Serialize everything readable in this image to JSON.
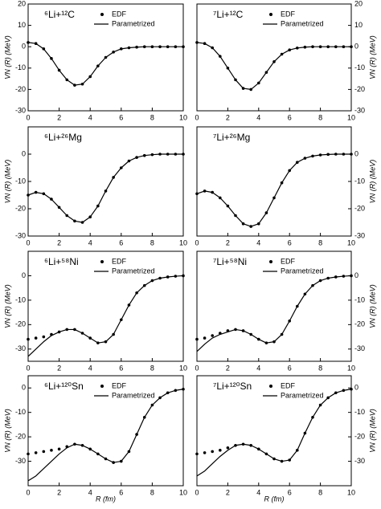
{
  "chart_data": [
    {
      "type": "line",
      "title": "⁶Li+¹²C",
      "ylabel": "VN (R) (MeV)",
      "yaxis": "left",
      "x": [
        0,
        0.5,
        1,
        1.5,
        2,
        2.5,
        3,
        3.5,
        4,
        4.5,
        5,
        5.5,
        6,
        6.5,
        7,
        7.5,
        8,
        8.5,
        9,
        9.5,
        10
      ],
      "xlim": [
        0,
        10
      ],
      "xticks": [
        0,
        2,
        4,
        6,
        8,
        10
      ],
      "ylim": [
        -30,
        20
      ],
      "yticks": [
        -30,
        -20,
        -10,
        0,
        10,
        20
      ],
      "series": [
        {
          "name": "EDF",
          "mode": "markers",
          "color": "#000000",
          "values": [
            2,
            1.5,
            -1,
            -5.5,
            -11,
            -15.5,
            -18,
            -17.5,
            -14,
            -9,
            -5,
            -2.5,
            -1,
            -0.5,
            -0.2,
            0,
            0,
            0,
            0,
            0,
            0
          ]
        },
        {
          "name": "Parametrized",
          "mode": "line",
          "color": "#000000",
          "values": [
            2,
            1.5,
            -1,
            -5.5,
            -11,
            -15.5,
            -18,
            -17.5,
            -14,
            -9,
            -5,
            -2.5,
            -1,
            -0.5,
            -0.2,
            0,
            0,
            0,
            0,
            0,
            0
          ]
        }
      ]
    },
    {
      "type": "line",
      "title": "⁷Li+¹²C",
      "ylabel": "VN (R) (MeV)",
      "yaxis": "right",
      "x": [
        0,
        0.5,
        1,
        1.5,
        2,
        2.5,
        3,
        3.5,
        4,
        4.5,
        5,
        5.5,
        6,
        6.5,
        7,
        7.5,
        8,
        8.5,
        9,
        9.5,
        10
      ],
      "xlim": [
        0,
        10
      ],
      "xticks": [
        0,
        2,
        4,
        6,
        8,
        10
      ],
      "ylim": [
        -30,
        20
      ],
      "yticks": [
        -30,
        -20,
        -10,
        0,
        10,
        20
      ],
      "series": [
        {
          "name": "EDF",
          "mode": "markers",
          "color": "#000000",
          "values": [
            2,
            1.5,
            -0.5,
            -4.5,
            -10,
            -15.5,
            -19.5,
            -20,
            -17,
            -12,
            -7,
            -3.5,
            -1.5,
            -0.6,
            -0.2,
            0,
            0,
            0,
            0,
            0,
            0
          ]
        },
        {
          "name": "Parametrized",
          "mode": "line",
          "color": "#000000",
          "values": [
            2,
            1.5,
            -0.5,
            -4.5,
            -10,
            -15.5,
            -19.5,
            -20,
            -17,
            -12,
            -7,
            -3.5,
            -1.5,
            -0.6,
            -0.2,
            0,
            0,
            0,
            0,
            0,
            0
          ]
        }
      ]
    },
    {
      "type": "line",
      "title": "⁶Li+²⁶Mg",
      "ylabel": "VN (R) (MeV)",
      "yaxis": "left",
      "x": [
        0,
        0.5,
        1,
        1.5,
        2,
        2.5,
        3,
        3.5,
        4,
        4.5,
        5,
        5.5,
        6,
        6.5,
        7,
        7.5,
        8,
        8.5,
        9,
        9.5,
        10
      ],
      "xlim": [
        0,
        10
      ],
      "xticks": [
        0,
        2,
        4,
        6,
        8,
        10
      ],
      "ylim": [
        -30,
        10
      ],
      "yticks": [
        -30,
        -20,
        -10,
        0
      ],
      "series": [
        {
          "mode": "markers",
          "color": "#000000",
          "values": [
            -15,
            -14,
            -14.5,
            -16.5,
            -19.5,
            -22.5,
            -24.5,
            -25,
            -23,
            -19,
            -13.5,
            -8.5,
            -5,
            -2.5,
            -1.2,
            -0.5,
            -0.2,
            0,
            0,
            0,
            0
          ]
        },
        {
          "mode": "line",
          "color": "#000000",
          "values": [
            -15,
            -14,
            -14.5,
            -16.5,
            -19.5,
            -22.5,
            -24.5,
            -25,
            -23,
            -19,
            -13.5,
            -8.5,
            -5,
            -2.5,
            -1.2,
            -0.5,
            -0.2,
            0,
            0,
            0,
            0
          ]
        }
      ]
    },
    {
      "type": "line",
      "title": "⁷Li+²⁶Mg",
      "ylabel": "VN (R) (MeV)",
      "yaxis": "right",
      "x": [
        0,
        0.5,
        1,
        1.5,
        2,
        2.5,
        3,
        3.5,
        4,
        4.5,
        5,
        5.5,
        6,
        6.5,
        7,
        7.5,
        8,
        8.5,
        9,
        9.5,
        10
      ],
      "xlim": [
        0,
        10
      ],
      "xticks": [
        0,
        2,
        4,
        6,
        8,
        10
      ],
      "ylim": [
        -30,
        10
      ],
      "yticks": [
        -30,
        -20,
        -10,
        0
      ],
      "series": [
        {
          "mode": "markers",
          "color": "#000000",
          "values": [
            -14.5,
            -13.5,
            -14,
            -16,
            -19,
            -22.5,
            -25.5,
            -26.5,
            -25.5,
            -21.5,
            -16,
            -10.5,
            -6,
            -3,
            -1.5,
            -0.7,
            -0.3,
            -0.1,
            0,
            0,
            0
          ]
        },
        {
          "mode": "line",
          "color": "#000000",
          "values": [
            -14.5,
            -13.5,
            -14,
            -16,
            -19,
            -22.5,
            -25.5,
            -26.5,
            -25.5,
            -21.5,
            -16,
            -10.5,
            -6,
            -3,
            -1.5,
            -0.7,
            -0.3,
            -0.1,
            0,
            0,
            0
          ]
        }
      ]
    },
    {
      "type": "line",
      "title": "⁶Li+⁵⁸Ni",
      "ylabel": "VN (R) (MeV)",
      "yaxis": "left",
      "x": [
        0,
        0.5,
        1,
        1.5,
        2,
        2.5,
        3,
        3.5,
        4,
        4.5,
        5,
        5.5,
        6,
        6.5,
        7,
        7.5,
        8,
        8.5,
        9,
        9.5,
        10
      ],
      "xlim": [
        0,
        10
      ],
      "xticks": [
        0,
        2,
        4,
        6,
        8,
        10
      ],
      "ylim": [
        -35,
        10
      ],
      "yticks": [
        -30,
        -20,
        -10,
        0
      ],
      "series": [
        {
          "name": "EDF",
          "mode": "markers",
          "color": "#000000",
          "values": [
            -26,
            -25.5,
            -25,
            -24,
            -23,
            -22,
            -22,
            -23.5,
            -25.5,
            -27.5,
            -27,
            -24,
            -18,
            -12,
            -7,
            -4,
            -2,
            -1,
            -0.5,
            -0.2,
            0
          ]
        },
        {
          "name": "Parametrized",
          "mode": "line",
          "color": "#000000",
          "values": [
            -33,
            -30,
            -27,
            -24.5,
            -23,
            -22,
            -22,
            -23.5,
            -25.5,
            -27.5,
            -27,
            -24,
            -18,
            -12,
            -7,
            -4,
            -2,
            -1,
            -0.5,
            -0.2,
            0
          ]
        }
      ]
    },
    {
      "type": "line",
      "title": "⁷Li+⁵⁸Ni",
      "ylabel": "VN (R) (MeV)",
      "yaxis": "right",
      "x": [
        0,
        0.5,
        1,
        1.5,
        2,
        2.5,
        3,
        3.5,
        4,
        4.5,
        5,
        5.5,
        6,
        6.5,
        7,
        7.5,
        8,
        8.5,
        9,
        9.5,
        10
      ],
      "xlim": [
        0,
        10
      ],
      "xticks": [
        0,
        2,
        4,
        6,
        8,
        10
      ],
      "ylim": [
        -35,
        10
      ],
      "yticks": [
        -30,
        -20,
        -10,
        0
      ],
      "series": [
        {
          "name": "EDF",
          "mode": "markers",
          "color": "#000000",
          "values": [
            -26,
            -25.5,
            -24.5,
            -23.5,
            -22.5,
            -22,
            -22.5,
            -24,
            -26,
            -27.5,
            -27,
            -24,
            -18.5,
            -12.5,
            -7.5,
            -4,
            -2,
            -1,
            -0.5,
            -0.2,
            0
          ]
        },
        {
          "name": "Parametrized",
          "mode": "line",
          "color": "#000000",
          "values": [
            -31,
            -28,
            -25.5,
            -24,
            -23,
            -22,
            -22.5,
            -24,
            -26,
            -27.5,
            -27,
            -24,
            -18.5,
            -12.5,
            -7.5,
            -4,
            -2,
            -1,
            -0.5,
            -0.2,
            0
          ]
        }
      ]
    },
    {
      "type": "line",
      "title": "⁶Li+¹²⁰Sn",
      "ylabel": "VN (R) (MeV)",
      "xlabel": "R (fm)",
      "yaxis": "left",
      "x": [
        0,
        0.5,
        1,
        1.5,
        2,
        2.5,
        3,
        3.5,
        4,
        4.5,
        5,
        5.5,
        6,
        6.5,
        7,
        7.5,
        8,
        8.5,
        9,
        9.5,
        10
      ],
      "xlim": [
        0,
        10
      ],
      "xticks": [
        0,
        2,
        4,
        6,
        8,
        10
      ],
      "ylim": [
        -40,
        5
      ],
      "yticks": [
        -30,
        -20,
        -10,
        0
      ],
      "series": [
        {
          "name": "EDF",
          "mode": "markers",
          "color": "#000000",
          "values": [
            -27,
            -26.5,
            -26,
            -25.5,
            -25,
            -24,
            -23,
            -23.5,
            -25,
            -27,
            -29,
            -30.5,
            -30,
            -26,
            -19,
            -12,
            -7,
            -4,
            -2,
            -1,
            -0.5
          ]
        },
        {
          "name": "Parametrized",
          "mode": "line",
          "color": "#000000",
          "values": [
            -38,
            -36,
            -33,
            -30,
            -27,
            -24.5,
            -23,
            -23.5,
            -25,
            -27,
            -29,
            -30.5,
            -30,
            -26,
            -19,
            -12,
            -7,
            -4,
            -2,
            -1,
            -0.5
          ]
        }
      ]
    },
    {
      "type": "line",
      "title": "⁷Li+¹²⁰Sn",
      "ylabel": "VN (R) (MeV)",
      "xlabel": "R (fm)",
      "yaxis": "right",
      "x": [
        0,
        0.5,
        1,
        1.5,
        2,
        2.5,
        3,
        3.5,
        4,
        4.5,
        5,
        5.5,
        6,
        6.5,
        7,
        7.5,
        8,
        8.5,
        9,
        9.5,
        10
      ],
      "xlim": [
        0,
        10
      ],
      "xticks": [
        0,
        2,
        4,
        6,
        8,
        10
      ],
      "ylim": [
        -40,
        5
      ],
      "yticks": [
        -30,
        -20,
        -10,
        0
      ],
      "series": [
        {
          "name": "EDF",
          "mode": "markers",
          "color": "#000000",
          "values": [
            -27,
            -26.5,
            -26,
            -25.5,
            -24.5,
            -23.5,
            -23,
            -23.5,
            -25,
            -27,
            -29,
            -30,
            -29.5,
            -25.5,
            -18.5,
            -12,
            -7,
            -4,
            -2,
            -1,
            -0.5
          ]
        },
        {
          "name": "Parametrized",
          "mode": "line",
          "color": "#000000",
          "values": [
            -36,
            -34,
            -31,
            -28,
            -25.5,
            -23.5,
            -23,
            -23.5,
            -25,
            -27,
            -29,
            -30,
            -29.5,
            -25.5,
            -18.5,
            -12,
            -7,
            -4,
            -2,
            -1,
            -0.5
          ]
        }
      ]
    }
  ]
}
